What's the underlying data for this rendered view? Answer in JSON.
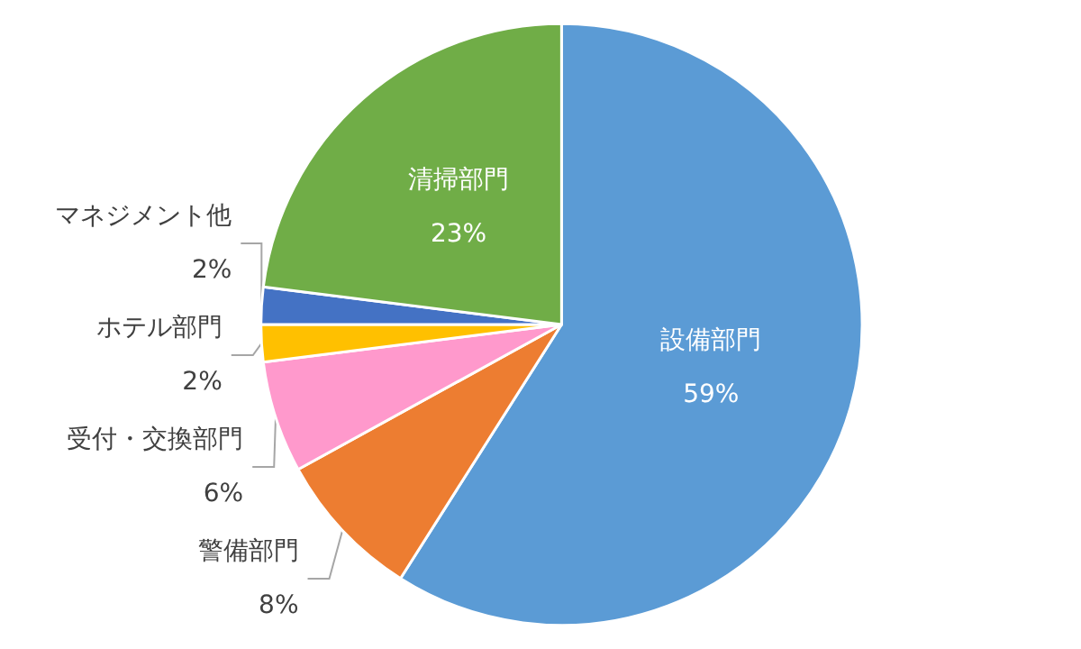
{
  "chart_data": {
    "type": "pie",
    "categories": [
      "設備部門",
      "警備部門",
      "受付・交換部門",
      "ホテル部門",
      "マネジメント他",
      "清掃部門"
    ],
    "values": [
      59,
      8,
      6,
      2,
      2,
      23
    ],
    "colors": [
      "#5b9bd5",
      "#ed7d31",
      "#ff99cc",
      "#ffc000",
      "#4472c4",
      "#70ad47"
    ],
    "value_labels": [
      "59%",
      "8%",
      "6%",
      "2%",
      "2%",
      "23%"
    ],
    "legend": false
  }
}
